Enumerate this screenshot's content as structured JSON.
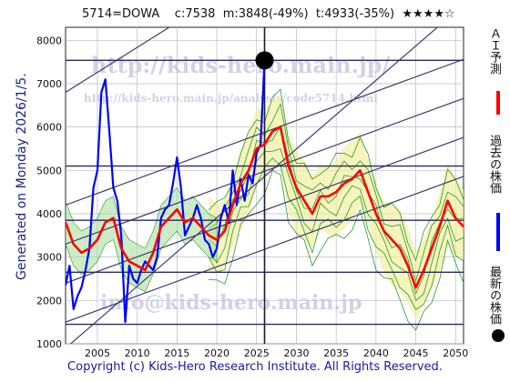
{
  "header": {
    "ticker": "5714=DOWA",
    "current": "c:7538",
    "mean": "m:3848(-49%)",
    "target": "t:4933(-35%)",
    "stars": "★★★★☆"
  },
  "footer": {
    "copyright": "Copyright (c) Kids-Hero Research Institute. All Rights Reserved."
  },
  "side_note": {
    "generated": "Generated on Monday 2026/1/5."
  },
  "watermarks": {
    "url1": "http://kids-hero.main.jp/",
    "url2": "http://kids-hero.main.jp/analysis/code5714.html",
    "email": "info@kids-hero.main.jp"
  },
  "legend": {
    "ai": {
      "label": "ＡＩ予測",
      "color": "#ff0000"
    },
    "past": {
      "label": "過去の株価",
      "color": "#0000ff"
    },
    "latest": {
      "label": "最新の株価",
      "color": "#000000"
    }
  },
  "colors": {
    "grid": "#5a5a8a",
    "trend": "#3c3c70",
    "band_fill": "#f0f0a0",
    "band_line": "#2a9a2a"
  },
  "chart_data": {
    "type": "line",
    "xlim": [
      2001,
      2051
    ],
    "ylim": [
      1000,
      8300
    ],
    "x_ticks": [
      2005,
      2010,
      2015,
      2020,
      2025,
      2030,
      2035,
      2040,
      2045,
      2050
    ],
    "y_ticks": [
      1000,
      2000,
      3000,
      4000,
      5000,
      6000,
      7000,
      8000
    ],
    "horizontal_levels": [
      7538,
      5100,
      3848,
      2650,
      1450
    ],
    "latest_point": {
      "x": 2026.0,
      "y": 7538
    },
    "series": [
      {
        "name": "過去の株価",
        "color": "#0000ff",
        "x": [
          2001.0,
          2001.5,
          2002.0,
          2002.5,
          2003.0,
          2003.5,
          2004.0,
          2004.5,
          2005.0,
          2005.5,
          2006.0,
          2006.5,
          2007.0,
          2007.5,
          2008.0,
          2008.5,
          2009.0,
          2009.5,
          2010.0,
          2010.5,
          2011.0,
          2011.5,
          2012.0,
          2012.5,
          2013.0,
          2013.5,
          2014.0,
          2014.5,
          2015.0,
          2015.5,
          2016.0,
          2016.5,
          2017.0,
          2017.5,
          2018.0,
          2018.5,
          2019.0,
          2019.5,
          2020.0,
          2020.5,
          2021.0,
          2021.5,
          2022.0,
          2022.5,
          2023.0,
          2023.5,
          2024.0,
          2024.5,
          2025.0,
          2025.5,
          2026.0
        ],
        "y": [
          2350,
          2800,
          1800,
          2100,
          2300,
          2700,
          3200,
          4600,
          5000,
          6800,
          7100,
          5900,
          4600,
          4300,
          3500,
          1500,
          2800,
          2500,
          2400,
          2700,
          2900,
          2800,
          2700,
          3000,
          3900,
          4100,
          4200,
          4700,
          5300,
          4600,
          3500,
          3700,
          3900,
          4200,
          3900,
          3400,
          3300,
          3000,
          3200,
          3900,
          4200,
          3800,
          5000,
          4200,
          4800,
          4300,
          4900,
          4700,
          5400,
          5600,
          7538
        ]
      },
      {
        "name": "ＡＩ予測",
        "color": "#ff0000",
        "x": [
          2001.0,
          2002.0,
          2003.0,
          2004.0,
          2005.0,
          2006.0,
          2007.0,
          2008.0,
          2009.0,
          2010.0,
          2011.0,
          2012.0,
          2013.0,
          2014.0,
          2015.0,
          2016.0,
          2017.0,
          2018.0,
          2019.0,
          2020.0,
          2021.0,
          2022.0,
          2023.0,
          2024.0,
          2025.0,
          2026.0,
          2027.0,
          2028.0,
          2029.0,
          2030.0,
          2031.0,
          2032.0,
          2033.0,
          2034.0,
          2035.0,
          2036.0,
          2037.0,
          2038.0,
          2039.0,
          2040.0,
          2041.0,
          2042.0,
          2043.0,
          2044.0,
          2045.0,
          2046.0,
          2047.0,
          2048.0,
          2049.0,
          2050.0,
          2051.0
        ],
        "y": [
          3800,
          3300,
          3100,
          3200,
          3400,
          3800,
          3900,
          3200,
          2900,
          2800,
          2700,
          3100,
          3700,
          3900,
          4100,
          3800,
          3900,
          3700,
          3500,
          3400,
          3600,
          4200,
          4700,
          5000,
          5500,
          5600,
          5900,
          6000,
          5100,
          4600,
          4300,
          4000,
          4400,
          4400,
          4500,
          4700,
          4800,
          5000,
          4500,
          4000,
          3600,
          3400,
          3200,
          2800,
          2300,
          2700,
          3200,
          3700,
          4300,
          3900,
          3700
        ]
      }
    ]
  }
}
